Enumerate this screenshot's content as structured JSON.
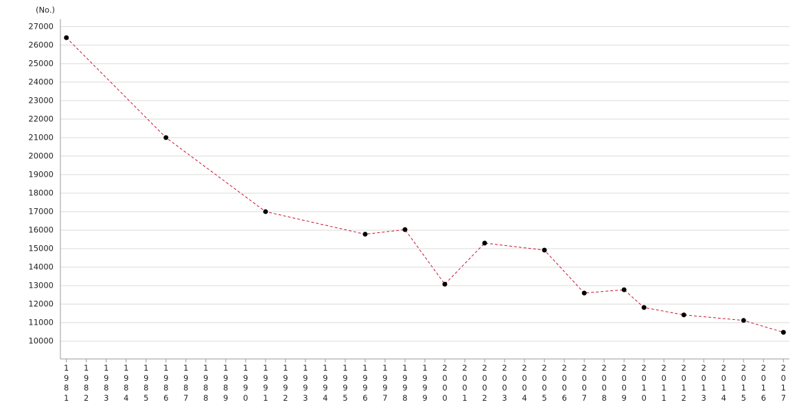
{
  "chart_data": {
    "type": "line",
    "y_label": "(No.)",
    "x": [
      1981,
      1986,
      1991,
      1996,
      1998,
      2000,
      2002,
      2005,
      2007,
      2009,
      2010,
      2012,
      2015,
      2017
    ],
    "series": [
      {
        "color": "#c8102e",
        "marker_color": "#000000",
        "values": [
          26400,
          21000,
          17000,
          15780,
          16030,
          13080,
          15300,
          14920,
          12600,
          12780,
          11820,
          11420,
          11120,
          10480
        ]
      }
    ],
    "xlim": [
      1980.7,
      2017.3
    ],
    "xticks": [
      1981,
      1982,
      1983,
      1984,
      1985,
      1986,
      1987,
      1988,
      1989,
      1990,
      1991,
      1992,
      1993,
      1994,
      1995,
      1996,
      1997,
      1998,
      1999,
      2000,
      2001,
      2002,
      2003,
      2004,
      2005,
      2006,
      2007,
      2008,
      2009,
      2010,
      2011,
      2012,
      2013,
      2014,
      2015,
      2016,
      2017
    ],
    "ylim": [
      9040,
      27400
    ],
    "yticks": [
      10000,
      11000,
      12000,
      13000,
      14000,
      15000,
      16000,
      17000,
      18000,
      19000,
      20000,
      21000,
      22000,
      23000,
      24000,
      25000,
      26000,
      27000
    ],
    "grid": true,
    "line_style": "dashed"
  }
}
